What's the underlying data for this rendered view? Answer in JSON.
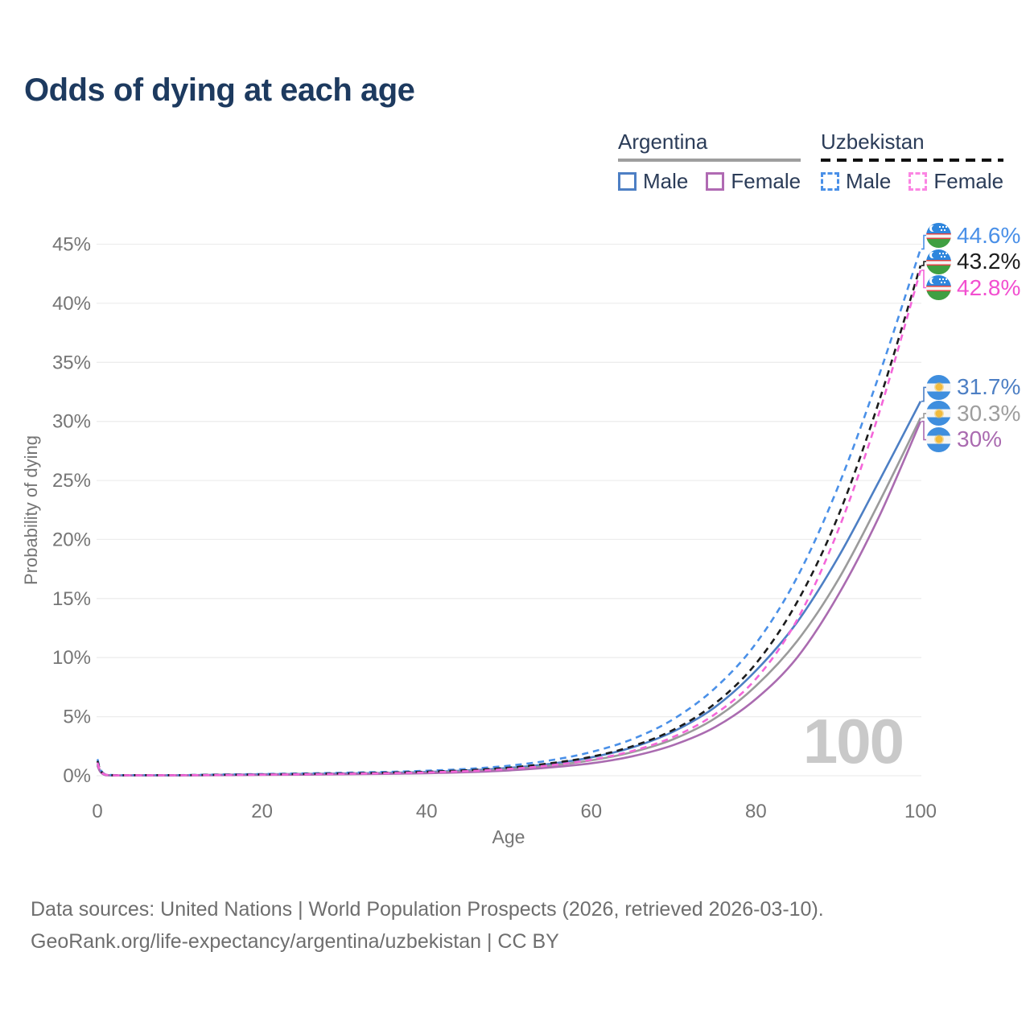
{
  "title": "Odds of dying at each age",
  "legend": {
    "position": "top-right",
    "groups": [
      {
        "label": "Argentina",
        "line_style": "solid",
        "underline_color": "#9e9e9e",
        "items": [
          {
            "label": "Male",
            "color": "#4d7fc4"
          },
          {
            "label": "Female",
            "color": "#b06ab3"
          }
        ]
      },
      {
        "label": "Uzbekistan",
        "line_style": "dashed",
        "underline_color": "#111111",
        "items": [
          {
            "label": "Male",
            "color": "#4a90e8"
          },
          {
            "label": "Female",
            "color": "#fb86e3"
          }
        ]
      }
    ]
  },
  "chart_data": {
    "type": "line",
    "title": "Odds of dying at each age",
    "xlabel": "Age",
    "ylabel": "Probability of dying",
    "xlim": [
      0,
      100
    ],
    "ylim": [
      0,
      45
    ],
    "x_ticks": [
      0,
      20,
      40,
      60,
      80,
      100
    ],
    "y_tick_step": 5,
    "y_unit": "%",
    "grid": true,
    "watermark": "100",
    "ages": [
      0,
      1,
      5,
      10,
      15,
      20,
      25,
      30,
      35,
      40,
      45,
      50,
      55,
      60,
      65,
      70,
      75,
      80,
      85,
      90,
      95,
      100
    ],
    "series": [
      {
        "name": "Argentina Male",
        "country": "Argentina",
        "sex": "Male",
        "style": "solid",
        "color": "#4d7fc4",
        "label_color": "#4d7fc4",
        "flag": "ar",
        "end_label": "31.7%",
        "values": [
          1.0,
          0.07,
          0.03,
          0.03,
          0.08,
          0.12,
          0.15,
          0.19,
          0.24,
          0.32,
          0.45,
          0.66,
          1.0,
          1.55,
          2.4,
          3.75,
          5.8,
          8.9,
          13.0,
          18.5,
          25.0,
          31.7
        ]
      },
      {
        "name": "Argentina Both sexes",
        "country": "Argentina",
        "sex": "Both",
        "style": "solid",
        "color": "#9b9b9b",
        "label_color": "#9e9e9e",
        "flag": "ar",
        "end_label": "30.3%",
        "values": [
          0.92,
          0.06,
          0.03,
          0.03,
          0.06,
          0.09,
          0.12,
          0.15,
          0.19,
          0.26,
          0.37,
          0.55,
          0.85,
          1.3,
          2.0,
          3.1,
          4.85,
          7.6,
          11.4,
          16.6,
          23.2,
          30.3
        ]
      },
      {
        "name": "Argentina Female",
        "country": "Argentina",
        "sex": "Female",
        "style": "solid",
        "color": "#aa6bb0",
        "label_color": "#aa6bb0",
        "flag": "ar",
        "end_label": "30%",
        "values": [
          0.85,
          0.05,
          0.03,
          0.03,
          0.05,
          0.07,
          0.09,
          0.12,
          0.16,
          0.21,
          0.3,
          0.45,
          0.7,
          1.05,
          1.65,
          2.6,
          4.1,
          6.5,
          10.0,
          15.3,
          22.0,
          30.0
        ]
      },
      {
        "name": "Uzbekistan Male",
        "country": "Uzbekistan",
        "sex": "Male",
        "style": "dashed",
        "color": "#4a90e8",
        "label_color": "#4a90e8",
        "flag": "uz",
        "end_label": "44.6%",
        "values": [
          1.4,
          0.1,
          0.05,
          0.05,
          0.1,
          0.14,
          0.19,
          0.25,
          0.32,
          0.42,
          0.58,
          0.85,
          1.3,
          2.0,
          3.1,
          4.8,
          7.4,
          11.2,
          16.8,
          24.5,
          34.0,
          44.6
        ]
      },
      {
        "name": "Uzbekistan Both sexes",
        "country": "Uzbekistan",
        "sex": "Both",
        "style": "dashed",
        "color": "#1c1c1c",
        "label_color": "#1c1c1c",
        "flag": "uz",
        "end_label": "43.2%",
        "values": [
          1.25,
          0.09,
          0.05,
          0.05,
          0.08,
          0.11,
          0.15,
          0.2,
          0.26,
          0.34,
          0.47,
          0.68,
          1.05,
          1.6,
          2.5,
          3.9,
          6.1,
          9.5,
          14.7,
          22.0,
          31.8,
          43.2
        ]
      },
      {
        "name": "Uzbekistan Female",
        "country": "Uzbekistan",
        "sex": "Female",
        "style": "dashed",
        "color": "#f466d9",
        "label_color": "#f24fd0",
        "flag": "uz",
        "end_label": "42.8%",
        "values": [
          1.1,
          0.08,
          0.04,
          0.04,
          0.06,
          0.09,
          0.12,
          0.16,
          0.21,
          0.28,
          0.39,
          0.57,
          0.88,
          1.35,
          2.1,
          3.3,
          5.2,
          8.2,
          13.2,
          20.8,
          30.8,
          42.8
        ]
      }
    ]
  },
  "colors": {
    "title": "#1d3a5f",
    "axis_text": "#757575",
    "gridline": "#ededed",
    "watermark": "#c9c9c9",
    "footer_text": "#6e6e6e"
  },
  "footer": {
    "line1": "Data sources: United Nations | World Population Prospects (2026, retrieved 2026-03-10).",
    "line2": "GeoRank.org/life-expectancy/argentina/uzbekistan | CC BY"
  }
}
